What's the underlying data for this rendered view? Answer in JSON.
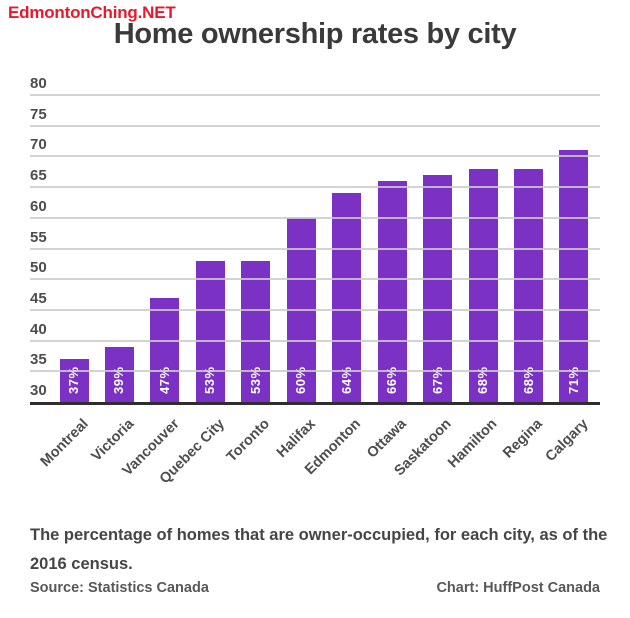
{
  "watermark": {
    "text": "EdmontonChing.NET",
    "color": "#e8192c"
  },
  "chart_data": {
    "type": "bar",
    "title": "Home ownership rates by city",
    "categories": [
      "Montreal",
      "Victoria",
      "Vancouver",
      "Quebec City",
      "Toronto",
      "Halifax",
      "Edmonton",
      "Ottawa",
      "Saskatoon",
      "Hamilton",
      "Regina",
      "Calgary"
    ],
    "values": [
      37,
      39,
      47,
      53,
      53,
      60,
      64,
      66,
      67,
      68,
      68,
      71
    ],
    "bar_labels": [
      "37%",
      "39%",
      "47%",
      "53%",
      "53%",
      "60%",
      "64%",
      "66%",
      "67%",
      "68%",
      "68%",
      "71%"
    ],
    "xlabel": "",
    "ylabel": "",
    "ylim": [
      30,
      80
    ],
    "yticks": [
      30,
      35,
      40,
      45,
      50,
      55,
      60,
      65,
      70,
      75,
      80
    ],
    "grid": true,
    "legend_position": "none",
    "bar_color": "#7b31c3",
    "grid_color": "#cbcbcb",
    "axis_color": "#2e2e2e"
  },
  "description": "The percentage of homes that are owner-occupied, for each city, as of the 2016 census.",
  "footer": {
    "source": "Source: Statistics Canada",
    "credit": "Chart: HuffPost Canada"
  }
}
